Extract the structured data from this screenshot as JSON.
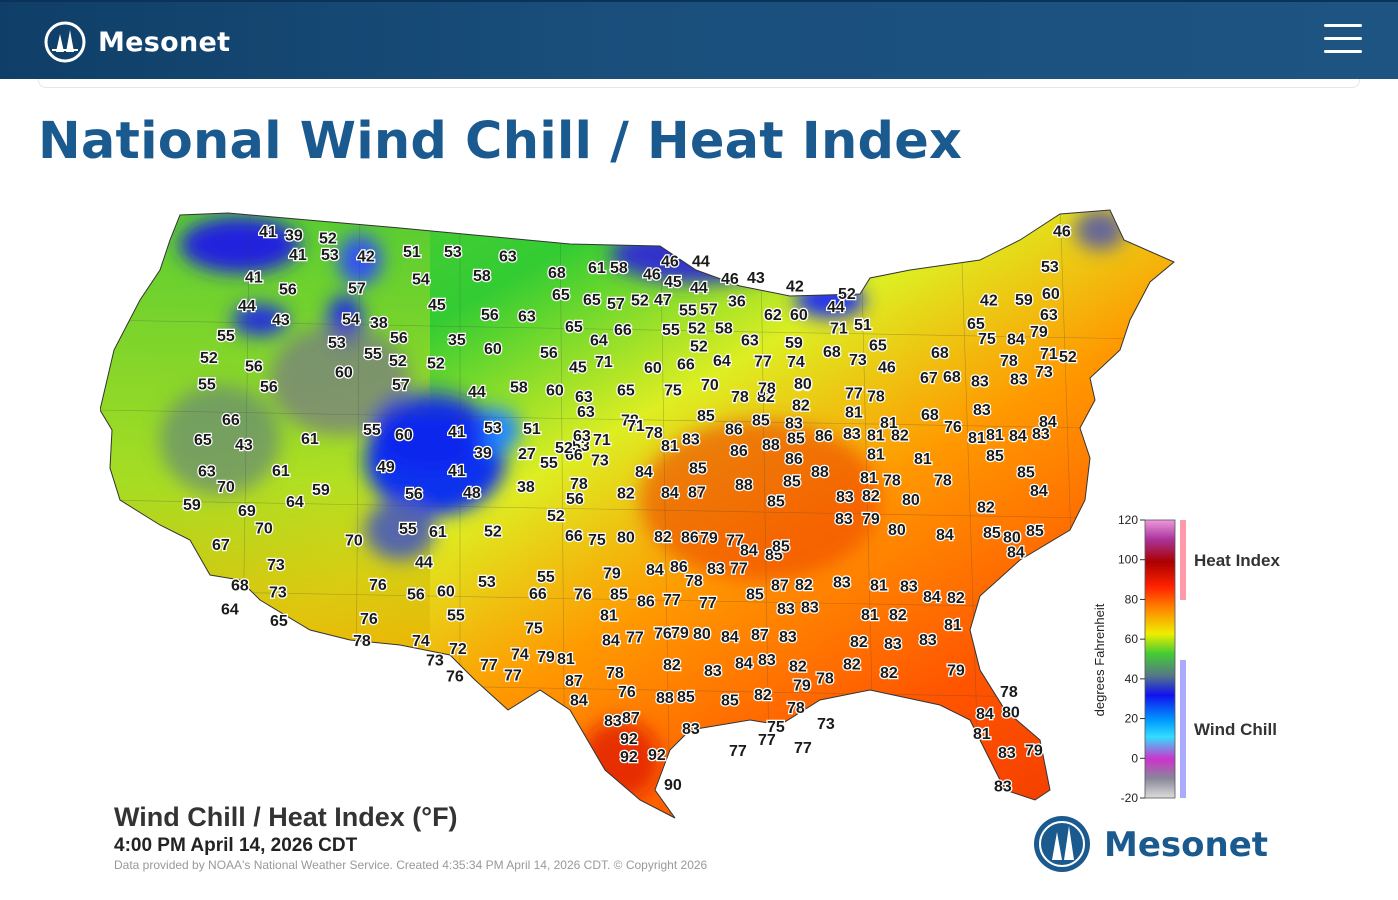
{
  "header": {
    "brand": "Mesonet",
    "menu_icon": "hamburger-menu-icon",
    "colors": {
      "bar": "#174a76",
      "text": "#ffffff"
    }
  },
  "page": {
    "title": "National Wind Chill / Heat Index",
    "title_color": "#1b5a8e"
  },
  "map": {
    "caption_title": "Wind Chill / Heat Index (°F)",
    "caption_time": "4:00 PM April 14, 2026 CDT",
    "caption_credit": "Data provided by NOAA's National Weather Service. Created 4:35:34 PM April 14, 2026 CDT. © Copyright 2026",
    "logo_text": "Mesonet",
    "legend": {
      "axis_title": "degrees Fahrenheit",
      "ticks": [
        "120",
        "100",
        "80",
        "60",
        "40",
        "20",
        "0",
        "-20"
      ],
      "heat_label": "Heat Index",
      "chill_label": "Wind Chill"
    },
    "stations": [
      [
        "41",
        0.079,
        0.025
      ],
      [
        "39",
        0.105,
        0.031
      ],
      [
        "52",
        0.139,
        0.036
      ],
      [
        "41",
        0.109,
        0.063
      ],
      [
        "53",
        0.141,
        0.063
      ],
      [
        "42",
        0.177,
        0.066
      ],
      [
        "51",
        0.223,
        0.058
      ],
      [
        "53",
        0.264,
        0.058
      ],
      [
        "63",
        0.319,
        0.066
      ],
      [
        "41",
        0.065,
        0.101
      ],
      [
        "54",
        0.232,
        0.104
      ],
      [
        "58",
        0.293,
        0.098
      ],
      [
        "56",
        0.099,
        0.121
      ],
      [
        "57",
        0.168,
        0.119
      ],
      [
        "45",
        0.248,
        0.147
      ],
      [
        "56",
        0.301,
        0.163
      ],
      [
        "63",
        0.338,
        0.166
      ],
      [
        "44",
        0.058,
        0.148
      ],
      [
        "43",
        0.092,
        0.172
      ],
      [
        "54",
        0.162,
        0.171
      ],
      [
        "38",
        0.19,
        0.177
      ],
      [
        "56",
        0.21,
        0.202
      ],
      [
        "35",
        0.268,
        0.205
      ],
      [
        "60",
        0.304,
        0.22
      ],
      [
        "56",
        0.36,
        0.227
      ],
      [
        "55",
        0.037,
        0.198
      ],
      [
        "53",
        0.148,
        0.21
      ],
      [
        "55",
        0.184,
        0.228
      ],
      [
        "52",
        0.209,
        0.24
      ],
      [
        "52",
        0.247,
        0.244
      ],
      [
        "52",
        0.02,
        0.235
      ],
      [
        "56",
        0.065,
        0.249
      ],
      [
        "60",
        0.155,
        0.259
      ],
      [
        "55",
        0.018,
        0.279
      ],
      [
        "56",
        0.08,
        0.283
      ],
      [
        "57",
        0.212,
        0.28
      ],
      [
        "44",
        0.288,
        0.292
      ],
      [
        "58",
        0.33,
        0.284
      ],
      [
        "60",
        0.366,
        0.289
      ],
      [
        "66",
        0.042,
        0.338
      ],
      [
        "55",
        0.183,
        0.355
      ],
      [
        "60",
        0.215,
        0.363
      ],
      [
        "41",
        0.268,
        0.358
      ],
      [
        "53",
        0.304,
        0.352
      ],
      [
        "51",
        0.343,
        0.353
      ],
      [
        "65",
        0.014,
        0.372
      ],
      [
        "43",
        0.055,
        0.38
      ],
      [
        "61",
        0.121,
        0.37
      ],
      [
        "39",
        0.294,
        0.393
      ],
      [
        "27",
        0.338,
        0.395
      ],
      [
        "53",
        0.392,
        0.382
      ],
      [
        "63",
        0.018,
        0.424
      ],
      [
        "61",
        0.092,
        0.423
      ],
      [
        "49",
        0.197,
        0.417
      ],
      [
        "41",
        0.268,
        0.423
      ],
      [
        "70",
        0.037,
        0.45
      ],
      [
        "64",
        0.106,
        0.475
      ],
      [
        "59",
        0.132,
        0.455
      ],
      [
        "56",
        0.225,
        0.462
      ],
      [
        "48",
        0.283,
        0.46
      ],
      [
        "38",
        0.337,
        0.45
      ],
      [
        "56",
        0.386,
        0.47
      ],
      [
        "59",
        0.003,
        0.48
      ],
      [
        "69",
        0.058,
        0.49
      ],
      [
        "52",
        0.367,
        0.498
      ],
      [
        "70",
        0.075,
        0.519
      ],
      [
        "55",
        0.219,
        0.52
      ],
      [
        "61",
        0.249,
        0.525
      ],
      [
        "52",
        0.304,
        0.524
      ],
      [
        "67",
        0.032,
        0.547
      ],
      [
        "70",
        0.165,
        0.539
      ],
      [
        "73",
        0.087,
        0.58
      ],
      [
        "44",
        0.235,
        0.576
      ],
      [
        "68",
        0.051,
        0.614
      ],
      [
        "73",
        0.089,
        0.626
      ],
      [
        "76",
        0.189,
        0.613
      ],
      [
        "56",
        0.227,
        0.629
      ],
      [
        "60",
        0.257,
        0.624
      ],
      [
        "53",
        0.298,
        0.608
      ],
      [
        "55",
        0.357,
        0.6
      ],
      [
        "64",
        0.041,
        0.654
      ],
      [
        "65",
        0.09,
        0.673
      ],
      [
        "76",
        0.18,
        0.67
      ],
      [
        "55",
        0.267,
        0.664
      ],
      [
        "66",
        0.349,
        0.628
      ],
      [
        "75",
        0.345,
        0.686
      ],
      [
        "78",
        0.173,
        0.707
      ],
      [
        "74",
        0.232,
        0.707
      ],
      [
        "72",
        0.269,
        0.72
      ],
      [
        "73",
        0.246,
        0.739
      ],
      [
        "77",
        0.3,
        0.747
      ],
      [
        "74",
        0.331,
        0.729
      ],
      [
        "79",
        0.357,
        0.733
      ],
      [
        "81",
        0.377,
        0.737
      ],
      [
        "76",
        0.266,
        0.766
      ],
      [
        "77",
        0.324,
        0.764
      ],
      [
        "66",
        0.385,
        0.532
      ],
      [
        "75",
        0.408,
        0.538
      ],
      [
        "80",
        0.437,
        0.534
      ],
      [
        "82",
        0.474,
        0.533
      ],
      [
        "86",
        0.501,
        0.534
      ],
      [
        "79",
        0.52,
        0.535
      ],
      [
        "77",
        0.546,
        0.539
      ],
      [
        "84",
        0.56,
        0.556
      ],
      [
        "85",
        0.585,
        0.563
      ],
      [
        "79",
        0.423,
        0.594
      ],
      [
        "84",
        0.466,
        0.588
      ],
      [
        "86",
        0.49,
        0.583
      ],
      [
        "78",
        0.505,
        0.607
      ],
      [
        "83",
        0.527,
        0.587
      ],
      [
        "77",
        0.55,
        0.586
      ],
      [
        "76",
        0.394,
        0.629
      ],
      [
        "85",
        0.43,
        0.629
      ],
      [
        "86",
        0.457,
        0.641
      ],
      [
        "77",
        0.483,
        0.638
      ],
      [
        "77",
        0.519,
        0.643
      ],
      [
        "81",
        0.42,
        0.664
      ],
      [
        "85",
        0.566,
        0.629
      ],
      [
        "87",
        0.591,
        0.614
      ],
      [
        "82",
        0.615,
        0.613
      ],
      [
        "83",
        0.653,
        0.609
      ],
      [
        "81",
        0.69,
        0.614
      ],
      [
        "83",
        0.72,
        0.616
      ],
      [
        "84",
        0.743,
        0.633
      ],
      [
        "82",
        0.767,
        0.635
      ],
      [
        "83",
        0.597,
        0.653
      ],
      [
        "83",
        0.621,
        0.651
      ],
      [
        "81",
        0.681,
        0.663
      ],
      [
        "82",
        0.709,
        0.663
      ],
      [
        "81",
        0.764,
        0.68
      ],
      [
        "84",
        0.422,
        0.706
      ],
      [
        "77",
        0.446,
        0.701
      ],
      [
        "76",
        0.474,
        0.694
      ],
      [
        "79",
        0.491,
        0.693
      ],
      [
        "80",
        0.513,
        0.695
      ],
      [
        "84",
        0.541,
        0.7
      ],
      [
        "87",
        0.571,
        0.697
      ],
      [
        "83",
        0.599,
        0.7
      ],
      [
        "82",
        0.67,
        0.708
      ],
      [
        "83",
        0.704,
        0.712
      ],
      [
        "83",
        0.739,
        0.705
      ],
      [
        "79",
        0.767,
        0.756
      ],
      [
        "82",
        0.483,
        0.747
      ],
      [
        "83",
        0.524,
        0.757
      ],
      [
        "84",
        0.555,
        0.744
      ],
      [
        "83",
        0.578,
        0.738
      ],
      [
        "82",
        0.609,
        0.749
      ],
      [
        "78",
        0.636,
        0.769
      ],
      [
        "82",
        0.663,
        0.746
      ],
      [
        "82",
        0.7,
        0.76
      ],
      [
        "78",
        0.426,
        0.76
      ],
      [
        "87",
        0.385,
        0.773
      ],
      [
        "76",
        0.438,
        0.792
      ],
      [
        "88",
        0.476,
        0.802
      ],
      [
        "85",
        0.497,
        0.8
      ],
      [
        "85",
        0.541,
        0.806
      ],
      [
        "82",
        0.574,
        0.797
      ],
      [
        "79",
        0.613,
        0.781
      ],
      [
        "78",
        0.607,
        0.818
      ],
      [
        "78",
        0.82,
        0.792
      ],
      [
        "84",
        0.796,
        0.828
      ],
      [
        "80",
        0.822,
        0.826
      ],
      [
        "84",
        0.39,
        0.806
      ],
      [
        "83",
        0.424,
        0.84
      ],
      [
        "87",
        0.442,
        0.835
      ],
      [
        "92",
        0.44,
        0.87
      ],
      [
        "92",
        0.44,
        0.9
      ],
      [
        "92",
        0.468,
        0.897
      ],
      [
        "83",
        0.502,
        0.853
      ],
      [
        "75",
        0.587,
        0.85
      ],
      [
        "73",
        0.637,
        0.845
      ],
      [
        "77",
        0.578,
        0.872
      ],
      [
        "77",
        0.549,
        0.89
      ],
      [
        "77",
        0.614,
        0.885
      ],
      [
        "81",
        0.793,
        0.862
      ],
      [
        "83",
        0.818,
        0.893
      ],
      [
        "79",
        0.845,
        0.889
      ],
      [
        "90",
        0.484,
        0.947
      ],
      [
        "83",
        0.814,
        0.949
      ],
      [
        "75",
        0.484,
        0.289
      ],
      [
        "70",
        0.521,
        0.28
      ],
      [
        "78",
        0.551,
        0.3
      ],
      [
        "82",
        0.577,
        0.3
      ],
      [
        "80",
        0.614,
        0.28
      ],
      [
        "77",
        0.665,
        0.294
      ],
      [
        "78",
        0.687,
        0.299
      ],
      [
        "68",
        0.741,
        0.33
      ],
      [
        "78",
        0.441,
        0.339
      ],
      [
        "85",
        0.517,
        0.332
      ],
      [
        "86",
        0.545,
        0.354
      ],
      [
        "85",
        0.572,
        0.339
      ],
      [
        "83",
        0.605,
        0.344
      ],
      [
        "82",
        0.612,
        0.314
      ],
      [
        "81",
        0.665,
        0.326
      ],
      [
        "81",
        0.7,
        0.343
      ],
      [
        "76",
        0.764,
        0.35
      ],
      [
        "83",
        0.793,
        0.322
      ],
      [
        "84",
        0.859,
        0.342
      ],
      [
        "71",
        0.447,
        0.348
      ],
      [
        "78",
        0.465,
        0.36
      ],
      [
        "81",
        0.481,
        0.382
      ],
      [
        "83",
        0.502,
        0.371
      ],
      [
        "86",
        0.55,
        0.39
      ],
      [
        "88",
        0.582,
        0.38
      ],
      [
        "85",
        0.607,
        0.369
      ],
      [
        "86",
        0.635,
        0.365
      ],
      [
        "83",
        0.663,
        0.362
      ],
      [
        "81",
        0.687,
        0.364
      ],
      [
        "82",
        0.711,
        0.364
      ],
      [
        "81",
        0.788,
        0.368
      ],
      [
        "81",
        0.806,
        0.363
      ],
      [
        "84",
        0.829,
        0.365
      ],
      [
        "83",
        0.852,
        0.362
      ],
      [
        "73",
        0.411,
        0.406
      ],
      [
        "84",
        0.455,
        0.425
      ],
      [
        "85",
        0.509,
        0.419
      ],
      [
        "86",
        0.605,
        0.403
      ],
      [
        "88",
        0.631,
        0.425
      ],
      [
        "81",
        0.687,
        0.396
      ],
      [
        "81",
        0.734,
        0.403
      ],
      [
        "85",
        0.806,
        0.398
      ],
      [
        "82",
        0.437,
        0.461
      ],
      [
        "84",
        0.481,
        0.46
      ],
      [
        "87",
        0.508,
        0.459
      ],
      [
        "88",
        0.555,
        0.447
      ],
      [
        "85",
        0.603,
        0.441
      ],
      [
        "81",
        0.68,
        0.435
      ],
      [
        "78",
        0.703,
        0.439
      ],
      [
        "78",
        0.754,
        0.439
      ],
      [
        "85",
        0.837,
        0.426
      ],
      [
        "84",
        0.85,
        0.457
      ],
      [
        "80",
        0.823,
        0.534
      ],
      [
        "85",
        0.846,
        0.523
      ],
      [
        "84",
        0.827,
        0.559
      ],
      [
        "82",
        0.797,
        0.484
      ],
      [
        "84",
        0.756,
        0.53
      ],
      [
        "80",
        0.722,
        0.472
      ],
      [
        "80",
        0.708,
        0.522
      ],
      [
        "82",
        0.682,
        0.465
      ],
      [
        "83",
        0.656,
        0.467
      ],
      [
        "79",
        0.682,
        0.503
      ],
      [
        "83",
        0.655,
        0.503
      ],
      [
        "85",
        0.592,
        0.549
      ],
      [
        "85",
        0.587,
        0.474
      ],
      [
        "85",
        0.803,
        0.527
      ],
      [
        "78",
        0.39,
        0.445
      ],
      [
        "63",
        0.395,
        0.3
      ],
      [
        "63",
        0.397,
        0.325
      ],
      [
        "63",
        0.393,
        0.365
      ],
      [
        "66",
        0.385,
        0.397
      ],
      [
        "71",
        0.413,
        0.372
      ],
      [
        "52",
        0.375,
        0.385
      ],
      [
        "65",
        0.437,
        0.289
      ],
      [
        "60",
        0.464,
        0.252
      ],
      [
        "45",
        0.389,
        0.251
      ],
      [
        "71",
        0.415,
        0.242
      ],
      [
        "64",
        0.41,
        0.206
      ],
      [
        "66",
        0.434,
        0.188
      ],
      [
        "65",
        0.385,
        0.183
      ],
      [
        "65",
        0.372,
        0.13
      ],
      [
        "65",
        0.403,
        0.138
      ],
      [
        "57",
        0.427,
        0.145
      ],
      [
        "52",
        0.451,
        0.139
      ],
      [
        "47",
        0.474,
        0.138
      ],
      [
        "55",
        0.499,
        0.156
      ],
      [
        "57",
        0.52,
        0.154
      ],
      [
        "36",
        0.548,
        0.141
      ],
      [
        "68",
        0.368,
        0.093
      ],
      [
        "61",
        0.408,
        0.085
      ],
      [
        "58",
        0.43,
        0.085
      ],
      [
        "46",
        0.463,
        0.096
      ],
      [
        "46",
        0.481,
        0.074
      ],
      [
        "44",
        0.512,
        0.074
      ],
      [
        "45",
        0.484,
        0.108
      ],
      [
        "44",
        0.51,
        0.118
      ],
      [
        "46",
        0.541,
        0.103
      ],
      [
        "43",
        0.567,
        0.102
      ],
      [
        "42",
        0.606,
        0.116
      ],
      [
        "52",
        0.658,
        0.128
      ],
      [
        "44",
        0.647,
        0.15
      ],
      [
        "71",
        0.65,
        0.186
      ],
      [
        "51",
        0.674,
        0.18
      ],
      [
        "55",
        0.482,
        0.188
      ],
      [
        "52",
        0.508,
        0.186
      ],
      [
        "58",
        0.535,
        0.186
      ],
      [
        "63",
        0.561,
        0.206
      ],
      [
        "52",
        0.51,
        0.216
      ],
      [
        "62",
        0.584,
        0.163
      ],
      [
        "60",
        0.61,
        0.163
      ],
      [
        "59",
        0.605,
        0.21
      ],
      [
        "77",
        0.574,
        0.241
      ],
      [
        "74",
        0.607,
        0.242
      ],
      [
        "68",
        0.643,
        0.225
      ],
      [
        "73",
        0.669,
        0.238
      ],
      [
        "65",
        0.689,
        0.214
      ],
      [
        "46",
        0.698,
        0.251
      ],
      [
        "66",
        0.497,
        0.246
      ],
      [
        "64",
        0.533,
        0.24
      ],
      [
        "78",
        0.578,
        0.286
      ],
      [
        "80",
        0.614,
        0.278
      ],
      [
        "67",
        0.74,
        0.268
      ],
      [
        "68",
        0.763,
        0.267
      ],
      [
        "78",
        0.82,
        0.24
      ],
      [
        "83",
        0.791,
        0.274
      ],
      [
        "83",
        0.83,
        0.271
      ],
      [
        "73",
        0.855,
        0.258
      ],
      [
        "42",
        0.8,
        0.139
      ],
      [
        "59",
        0.835,
        0.138
      ],
      [
        "60",
        0.862,
        0.128
      ],
      [
        "63",
        0.86,
        0.163
      ],
      [
        "65",
        0.787,
        0.178
      ],
      [
        "75",
        0.798,
        0.203
      ],
      [
        "84",
        0.827,
        0.204
      ],
      [
        "79",
        0.85,
        0.192
      ],
      [
        "71",
        0.86,
        0.228
      ],
      [
        "52",
        0.879,
        0.233
      ],
      [
        "68",
        0.751,
        0.227
      ],
      [
        "53",
        0.861,
        0.083
      ],
      [
        "46",
        0.873,
        0.024
      ],
      [
        "55",
        0.36,
        0.41
      ]
    ]
  }
}
